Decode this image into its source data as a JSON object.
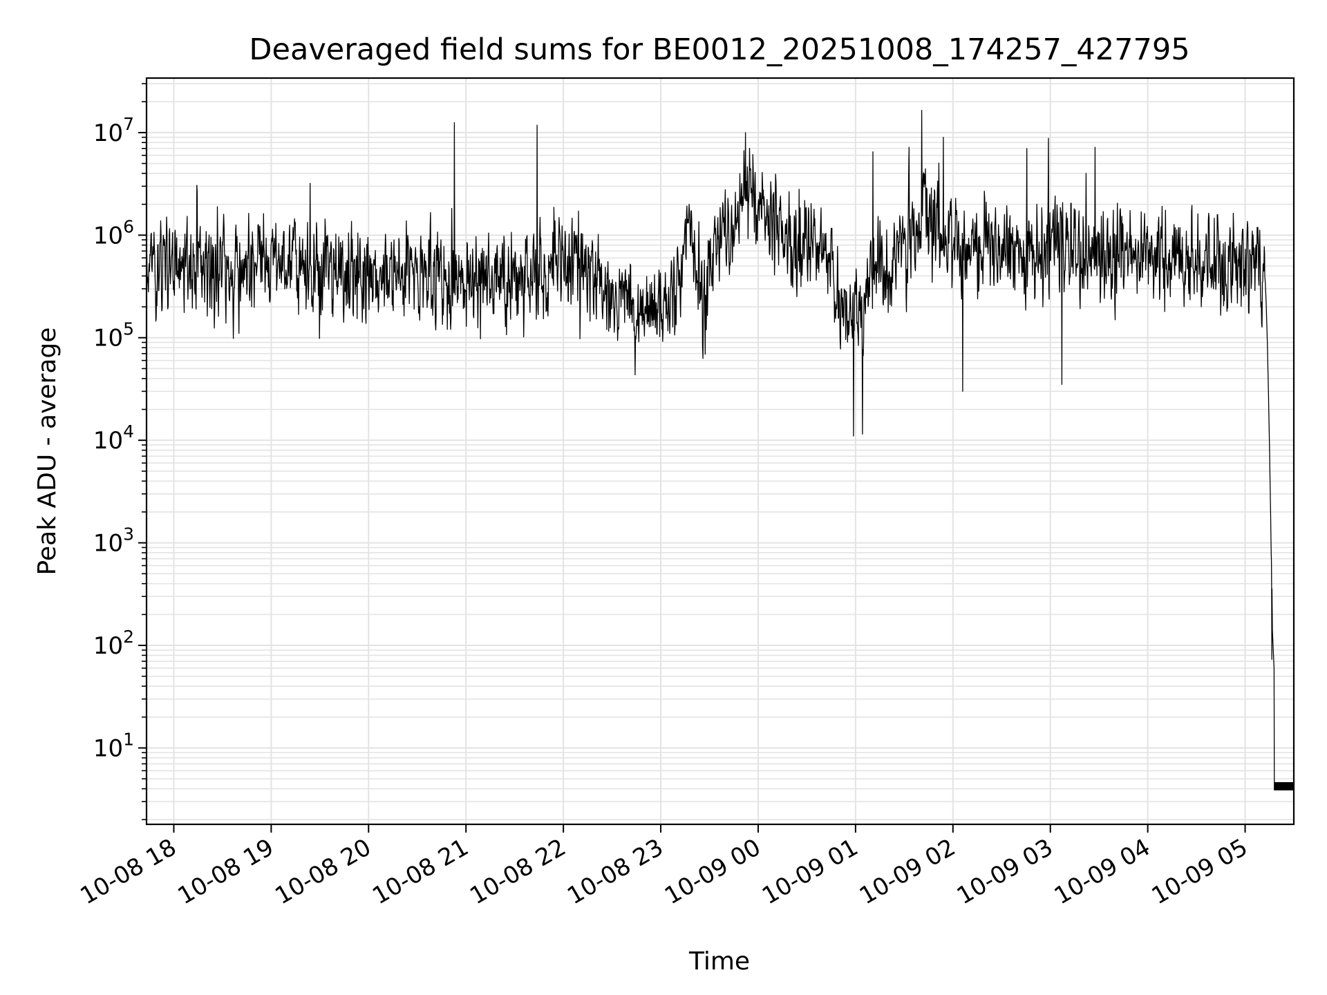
{
  "chart_data": {
    "type": "line",
    "title": "Deaveraged field sums for BE0012_20251008_174257_427795",
    "xlabel": "Time",
    "ylabel": "Peak ADU - average",
    "yscale": "log",
    "ylim": [
      1.8,
      34000000
    ],
    "xlim_hours": [
      17.72,
      29.5
    ],
    "grid": true,
    "line_color": "#000000",
    "grid_color": "#e3e3e3",
    "x_ticks": [
      {
        "label": "10-08 18",
        "hour": 18
      },
      {
        "label": "10-08 19",
        "hour": 19
      },
      {
        "label": "10-08 20",
        "hour": 20
      },
      {
        "label": "10-08 21",
        "hour": 21
      },
      {
        "label": "10-08 22",
        "hour": 22
      },
      {
        "label": "10-08 23",
        "hour": 23
      },
      {
        "label": "10-09 00",
        "hour": 24
      },
      {
        "label": "10-09 01",
        "hour": 25
      },
      {
        "label": "10-09 02",
        "hour": 26
      },
      {
        "label": "10-09 03",
        "hour": 27
      },
      {
        "label": "10-09 04",
        "hour": 28
      },
      {
        "label": "10-09 05",
        "hour": 29
      }
    ],
    "y_ticks": [
      {
        "base": "10",
        "exp": "1",
        "value": 10
      },
      {
        "base": "10",
        "exp": "2",
        "value": 100
      },
      {
        "base": "10",
        "exp": "3",
        "value": 1000
      },
      {
        "base": "10",
        "exp": "4",
        "value": 10000
      },
      {
        "base": "10",
        "exp": "5",
        "value": 100000
      },
      {
        "base": "10",
        "exp": "6",
        "value": 1000000
      },
      {
        "base": "10",
        "exp": "7",
        "value": 10000000
      }
    ],
    "series": [
      {
        "name": "deaveraged field sum",
        "anchors_hour": [
          17.72,
          18.5,
          19.0,
          19.5,
          20.0,
          20.5,
          21.0,
          21.5,
          22.1,
          22.2,
          22.5,
          22.8,
          23.0,
          23.15,
          23.25,
          23.45,
          23.55,
          23.9,
          24.0,
          24.3,
          24.7,
          24.9,
          25.05,
          25.2,
          25.5,
          25.7,
          26.0,
          26.5,
          27.0,
          27.5,
          28.0,
          28.5,
          29.0,
          29.2
        ],
        "anchors_value": [
          550000,
          500000,
          500000,
          500000,
          380000,
          400000,
          330000,
          380000,
          450000,
          650000,
          230000,
          180000,
          200000,
          280000,
          1500000,
          250000,
          700000,
          3000000,
          2000000,
          900000,
          700000,
          150000,
          180000,
          450000,
          800000,
          1500000,
          850000,
          700000,
          800000,
          700000,
          650000,
          550000,
          500000,
          450000
        ],
        "noise_sigma_log10": 0.32,
        "spikes": [
          {
            "hour": 19.4,
            "value": 3200000
          },
          {
            "hour": 20.88,
            "value": 12500000
          },
          {
            "hour": 21.73,
            "value": 11800000
          },
          {
            "hour": 23.87,
            "value": 10000000
          },
          {
            "hour": 24.42,
            "value": 2800000
          },
          {
            "hour": 24.98,
            "value": 11000
          },
          {
            "hour": 25.07,
            "value": 11500
          },
          {
            "hour": 25.18,
            "value": 6500000
          },
          {
            "hour": 25.55,
            "value": 7200000
          },
          {
            "hour": 25.68,
            "value": 16500000
          },
          {
            "hour": 25.9,
            "value": 9000000
          },
          {
            "hour": 26.1,
            "value": 30000
          },
          {
            "hour": 26.76,
            "value": 7000000
          },
          {
            "hour": 26.98,
            "value": 8800000
          },
          {
            "hour": 27.12,
            "value": 35000
          },
          {
            "hour": 27.46,
            "value": 7200000
          }
        ],
        "tail": {
          "decline_start_hour": 29.2,
          "decline_start_value": 400000,
          "decline_end_hour": 29.28,
          "decline_end_value": 120,
          "floor_start_hour": 29.3,
          "floor_end_hour": 29.5,
          "floor_low": 3.9,
          "floor_high": 4.6
        }
      }
    ]
  }
}
